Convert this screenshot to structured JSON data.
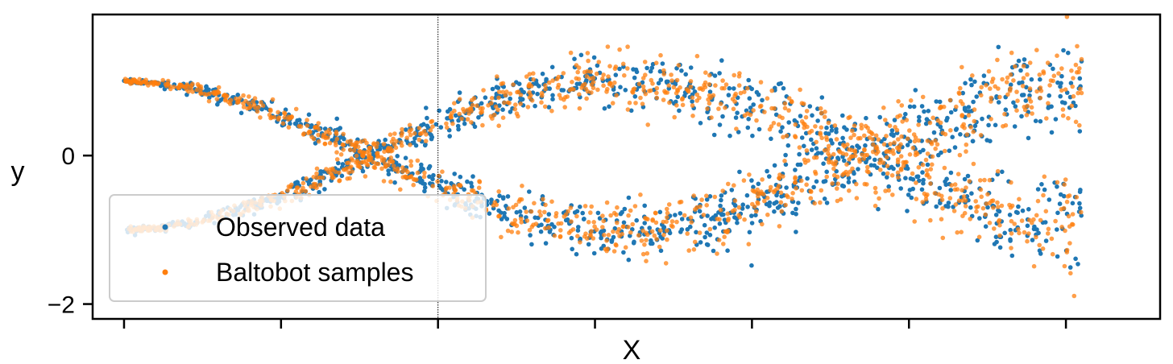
{
  "chart_data": {
    "type": "scatter",
    "title": "",
    "xlabel": "X",
    "ylabel": "y",
    "xlim": [
      -0.2,
      6.6
    ],
    "ylim": [
      -2.2,
      1.9
    ],
    "x_tick_values": [
      0,
      1,
      2,
      3,
      4,
      5,
      6
    ],
    "x_tick_labels": [
      "",
      "",
      "",
      "",
      "",
      "",
      ""
    ],
    "y_ticks": [
      0,
      -2
    ],
    "y_tick_labels": [
      "0",
      "−2"
    ],
    "vertical_line": {
      "x": 2.0,
      "style": "dotted"
    },
    "legend": {
      "position": "lower-left"
    },
    "grid": false,
    "series": [
      {
        "name": "Observed data",
        "color": "#1f77b4",
        "shape": "two crossing sinusoidal branches with growing noise",
        "x": [
          0.0,
          0.2,
          0.4,
          0.6,
          0.8,
          1.0,
          1.2,
          1.4,
          1.6,
          1.8,
          2.0,
          2.2,
          2.4,
          2.6,
          2.8,
          3.0,
          3.2,
          3.4,
          3.6,
          3.8,
          4.0,
          4.2,
          4.4,
          4.6,
          4.8,
          5.0,
          5.2,
          5.4,
          5.6,
          5.8,
          6.0,
          6.2,
          6.4,
          6.6
        ],
        "y_upper": [
          1.0,
          0.98,
          0.92,
          0.82,
          0.69,
          0.54,
          0.36,
          0.17,
          -0.03,
          -0.23,
          -0.42,
          -0.59,
          -0.74,
          -0.86,
          -0.94,
          -0.99,
          -1.0,
          -0.97,
          -0.9,
          -0.79,
          -0.65,
          -0.49,
          -0.31,
          -0.11,
          0.09,
          0.28,
          0.46,
          0.62,
          0.78,
          0.88,
          0.96,
          1.0,
          1.0,
          0.96
        ],
        "y_lower": [
          -1.0,
          -0.98,
          -0.92,
          -0.82,
          -0.69,
          -0.54,
          -0.36,
          -0.17,
          0.03,
          0.23,
          0.42,
          0.59,
          0.74,
          0.86,
          0.94,
          0.99,
          1.0,
          0.97,
          0.9,
          0.79,
          0.65,
          0.49,
          0.31,
          0.11,
          -0.09,
          -0.28,
          -0.46,
          -0.62,
          -0.78,
          -0.88,
          -0.96,
          -1.0,
          -1.0,
          -0.96
        ]
      },
      {
        "name": "Baltobot samples",
        "color": "#ff7f0e",
        "shape": "two crossing sinusoidal branches with growing noise",
        "x": [
          0.0,
          0.2,
          0.4,
          0.6,
          0.8,
          1.0,
          1.2,
          1.4,
          1.6,
          1.8,
          2.0,
          2.2,
          2.4,
          2.6,
          2.8,
          3.0,
          3.2,
          3.4,
          3.6,
          3.8,
          4.0,
          4.2,
          4.4,
          4.6,
          4.8,
          5.0,
          5.2,
          5.4,
          5.6,
          5.8,
          6.0,
          6.2,
          6.4,
          6.6
        ],
        "y_upper": [
          1.0,
          0.98,
          0.92,
          0.82,
          0.69,
          0.54,
          0.36,
          0.17,
          -0.03,
          -0.23,
          -0.42,
          -0.59,
          -0.74,
          -0.86,
          -0.94,
          -0.99,
          -1.0,
          -0.97,
          -0.9,
          -0.79,
          -0.65,
          -0.49,
          -0.31,
          -0.11,
          0.09,
          0.28,
          0.46,
          0.62,
          0.78,
          0.88,
          0.96,
          1.0,
          1.0,
          0.96
        ],
        "y_lower": [
          -1.0,
          -0.98,
          -0.92,
          -0.82,
          -0.69,
          -0.54,
          -0.36,
          -0.17,
          0.03,
          0.23,
          0.42,
          0.59,
          0.74,
          0.86,
          0.94,
          0.99,
          1.0,
          0.97,
          0.9,
          0.79,
          0.65,
          0.49,
          0.31,
          0.11,
          -0.09,
          -0.28,
          -0.46,
          -0.62,
          -0.78,
          -0.88,
          -0.96,
          -1.0,
          -1.0,
          -0.96
        ]
      }
    ]
  }
}
